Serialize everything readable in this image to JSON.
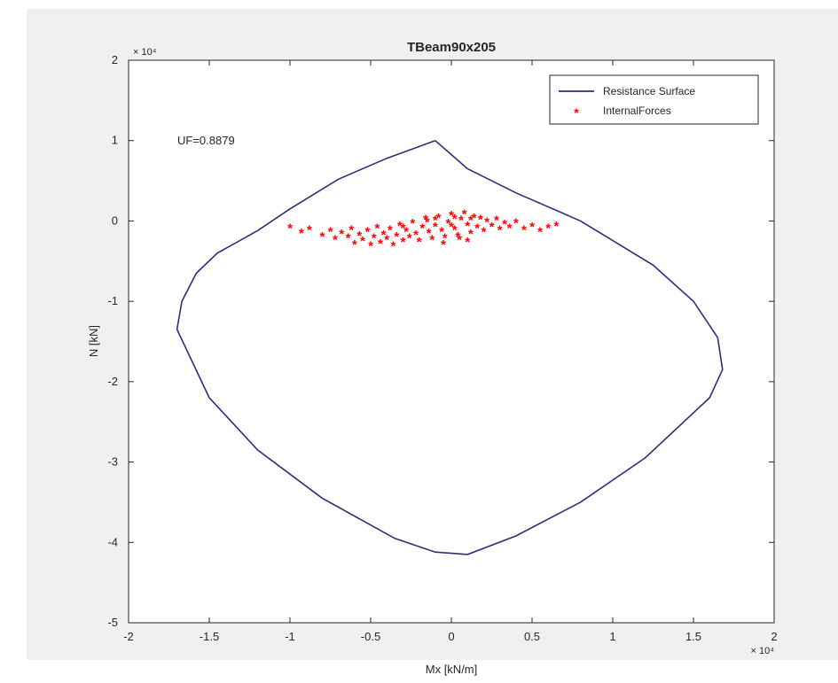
{
  "chart_data": {
    "type": "scatter",
    "title": "TBeam90x205",
    "xlabel": "Mx [kN/m]",
    "ylabel": "N [kN]",
    "x_exponent": "× 10⁴",
    "y_exponent": "× 10⁴",
    "xlim": [
      -2,
      2
    ],
    "ylim": [
      -5,
      2
    ],
    "xticks": [
      -2,
      -1.5,
      -1,
      -0.5,
      0,
      0.5,
      1,
      1.5,
      2
    ],
    "xtick_labels": [
      "-2",
      "-1.5",
      "-1",
      "-0.5",
      "0",
      "0.5",
      "1",
      "1.5",
      "2"
    ],
    "yticks": [
      -5,
      -4,
      -3,
      -2,
      -1,
      0,
      1,
      2
    ],
    "ytick_labels": [
      "-5",
      "-4",
      "-3",
      "-2",
      "-1",
      "0",
      "1",
      "2"
    ],
    "grid": false,
    "legend_position": "top-right",
    "annotation": "UF=0.8879",
    "series": [
      {
        "name": "Resistance Surface",
        "kind": "line",
        "color": "#2a2f7a",
        "points": [
          [
            -0.1,
            1.0
          ],
          [
            -0.4,
            0.78
          ],
          [
            -0.7,
            0.52
          ],
          [
            -1.0,
            0.15
          ],
          [
            -1.2,
            -0.12
          ],
          [
            -1.45,
            -0.4
          ],
          [
            -1.58,
            -0.65
          ],
          [
            -1.67,
            -1.0
          ],
          [
            -1.7,
            -1.35
          ],
          [
            -1.5,
            -2.2
          ],
          [
            -1.2,
            -2.85
          ],
          [
            -0.8,
            -3.45
          ],
          [
            -0.35,
            -3.95
          ],
          [
            -0.1,
            -4.12
          ],
          [
            0.1,
            -4.15
          ],
          [
            0.4,
            -3.92
          ],
          [
            0.8,
            -3.5
          ],
          [
            1.2,
            -2.95
          ],
          [
            1.6,
            -2.2
          ],
          [
            1.68,
            -1.85
          ],
          [
            1.65,
            -1.45
          ],
          [
            1.5,
            -1.0
          ],
          [
            1.25,
            -0.55
          ],
          [
            0.8,
            0.0
          ],
          [
            0.4,
            0.35
          ],
          [
            0.1,
            0.65
          ],
          [
            -0.1,
            1.0
          ]
        ]
      },
      {
        "name": "InternalForces",
        "kind": "scatter",
        "color": "#ff0000",
        "points": [
          [
            -1.0,
            -0.08
          ],
          [
            -0.93,
            -0.14
          ],
          [
            -0.88,
            -0.1
          ],
          [
            -0.8,
            -0.18
          ],
          [
            -0.75,
            -0.12
          ],
          [
            -0.72,
            -0.22
          ],
          [
            -0.68,
            -0.15
          ],
          [
            -0.64,
            -0.2
          ],
          [
            -0.62,
            -0.1
          ],
          [
            -0.6,
            -0.28
          ],
          [
            -0.57,
            -0.17
          ],
          [
            -0.55,
            -0.24
          ],
          [
            -0.52,
            -0.12
          ],
          [
            -0.5,
            -0.3
          ],
          [
            -0.48,
            -0.2
          ],
          [
            -0.46,
            -0.08
          ],
          [
            -0.44,
            -0.27
          ],
          [
            -0.42,
            -0.16
          ],
          [
            -0.4,
            -0.22
          ],
          [
            -0.38,
            -0.1
          ],
          [
            -0.36,
            -0.3
          ],
          [
            -0.34,
            -0.18
          ],
          [
            -0.32,
            -0.05
          ],
          [
            -0.3,
            -0.25
          ],
          [
            -0.28,
            -0.12
          ],
          [
            -0.26,
            -0.2
          ],
          [
            -0.24,
            -0.02
          ],
          [
            -0.22,
            -0.16
          ],
          [
            -0.2,
            -0.25
          ],
          [
            -0.18,
            -0.08
          ],
          [
            -0.16,
            0.03
          ],
          [
            -0.14,
            -0.14
          ],
          [
            -0.12,
            -0.22
          ],
          [
            -0.1,
            -0.06
          ],
          [
            -0.08,
            0.05
          ],
          [
            -0.06,
            -0.12
          ],
          [
            -0.04,
            -0.2
          ],
          [
            -0.02,
            -0.02
          ],
          [
            0.0,
            0.08
          ],
          [
            0.02,
            -0.1
          ],
          [
            0.04,
            -0.18
          ],
          [
            0.06,
            0.02
          ],
          [
            0.08,
            0.1
          ],
          [
            0.1,
            -0.05
          ],
          [
            0.12,
            -0.15
          ],
          [
            0.14,
            0.05
          ],
          [
            0.16,
            -0.08
          ],
          [
            0.18,
            0.03
          ],
          [
            0.2,
            -0.12
          ],
          [
            0.22,
            0.0
          ],
          [
            0.25,
            -0.06
          ],
          [
            0.28,
            0.02
          ],
          [
            0.3,
            -0.1
          ],
          [
            0.33,
            -0.03
          ],
          [
            0.36,
            -0.08
          ],
          [
            0.4,
            -0.01
          ],
          [
            0.45,
            -0.1
          ],
          [
            0.5,
            -0.06
          ],
          [
            0.55,
            -0.12
          ],
          [
            0.6,
            -0.08
          ],
          [
            0.65,
            -0.05
          ],
          [
            -0.05,
            -0.28
          ],
          [
            0.05,
            -0.22
          ],
          [
            0.1,
            -0.25
          ],
          [
            -0.15,
            0.0
          ],
          [
            0.0,
            -0.06
          ],
          [
            -0.1,
            0.02
          ],
          [
            0.12,
            0.02
          ],
          [
            -0.3,
            -0.08
          ],
          [
            0.02,
            0.04
          ]
        ]
      }
    ]
  }
}
